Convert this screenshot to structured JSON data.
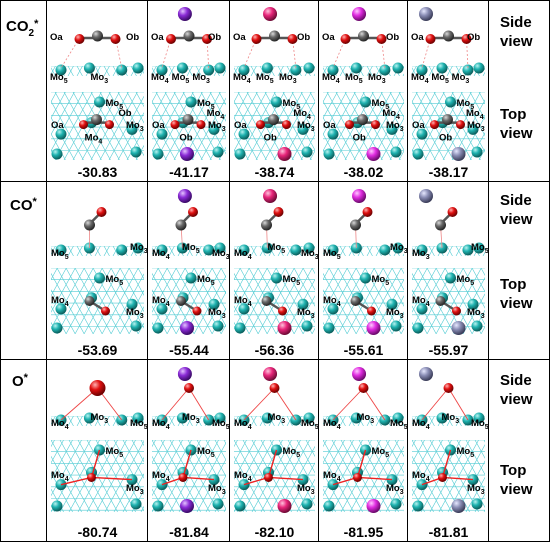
{
  "rows": [
    {
      "label_main": "CO",
      "label_sub": "2",
      "label_sup": "*",
      "side_view": [
        "Side",
        "view"
      ],
      "top_view": [
        "Top",
        "view"
      ],
      "energies": [
        "-30.83",
        "-41.17",
        "-38.74",
        "-38.02",
        "-38.17"
      ],
      "side_atom_labels": [
        [
          "Oa",
          "Ob",
          "Mo5",
          "Mo3"
        ],
        [
          "Oa",
          "Ob",
          "Mo4",
          "Mo5",
          "Mo3"
        ],
        [
          "Oa",
          "Ob",
          "Mo4",
          "Mo5",
          "Mo3"
        ],
        [
          "Oa",
          "Ob",
          "Mo4",
          "Mo5",
          "Mo3"
        ],
        [
          "Oa",
          "Ob",
          "Mo4",
          "Mo5",
          "Mo3"
        ]
      ],
      "top_atom_labels": [
        [
          "Mo5",
          "Oa",
          "Mo4",
          "Ob",
          "Mo3"
        ],
        [
          "Mo5",
          "Oa",
          "Ob",
          "Mo4",
          "Mo3"
        ],
        [
          "Mo5",
          "Oa",
          "Ob",
          "Mo4",
          "Mo3"
        ],
        [
          "Mo5",
          "Oa",
          "Ob",
          "Mo4",
          "Mo3"
        ],
        [
          "Mo5",
          "Oa",
          "Ob",
          "Mo4",
          "Mo3"
        ]
      ]
    },
    {
      "label_main": "CO",
      "label_sub": "",
      "label_sup": "*",
      "side_view": [
        "Side",
        "view"
      ],
      "top_view": [
        "Top",
        "view"
      ],
      "energies": [
        "-53.69",
        "-55.44",
        "-56.36",
        "-55.61",
        "-55.97"
      ],
      "side_atom_labels": [
        [
          "Mo5",
          "Mo3"
        ],
        [
          "Mo4",
          "Mo5",
          "Mo3"
        ],
        [
          "Mo4",
          "Mo5",
          "Mo3"
        ],
        [
          "Mo5",
          "Mo3"
        ],
        [
          "Mo3",
          "Mo5"
        ]
      ],
      "top_atom_labels": [
        [
          "Mo5",
          "Mo4",
          "Mo3"
        ],
        [
          "Mo5",
          "Mo4",
          "Mo3"
        ],
        [
          "Mo5",
          "Mo4",
          "Mo3"
        ],
        [
          "Mo5",
          "Mo4",
          "Mo3"
        ],
        [
          "Mo5",
          "Mo4",
          "Mo3"
        ]
      ]
    },
    {
      "label_main": "O",
      "label_sub": "",
      "label_sup": "*",
      "side_view": [
        "Side",
        "view"
      ],
      "top_view": [
        "Top",
        "view"
      ],
      "energies": [
        "-80.74",
        "-81.84",
        "-82.10",
        "-81.95",
        "-81.81"
      ],
      "side_atom_labels": [
        [
          "Mo4",
          "Mo3",
          "Mo5"
        ],
        [
          "Mo4",
          "Mo3",
          "Mo5"
        ],
        [
          "Mo4",
          "Mo3",
          "Mo5"
        ],
        [
          "Mo4",
          "Mo3",
          "Mo5"
        ],
        [
          "Mo4",
          "Mo3",
          "Mo5"
        ]
      ],
      "top_atom_labels": [
        [
          "Mo5",
          "Mo4",
          "Mo3"
        ],
        [
          "Mo5",
          "Mo4",
          "Mo3"
        ],
        [
          "Mo5",
          "Mo4",
          "Mo3"
        ],
        [
          "Mo5",
          "Mo4",
          "Mo3"
        ],
        [
          "Mo5",
          "Mo4",
          "Mo3"
        ]
      ]
    }
  ],
  "columns": [
    {
      "dopant": "none",
      "color": ""
    },
    {
      "dopant": "purple-sphere",
      "color": "#8B2BD6"
    },
    {
      "dopant": "pink-sphere",
      "color": "#E8257A"
    },
    {
      "dopant": "magenta-sphere",
      "color": "#E02BE0"
    },
    {
      "dopant": "slate-sphere",
      "color": "#8A8DB5"
    }
  ],
  "colors": {
    "mo": "#1FB3B0",
    "oxygen": "#E01010",
    "carbon": "#6A6A6A",
    "bond_teal": "#2CB8C0",
    "grid": "#000000"
  }
}
